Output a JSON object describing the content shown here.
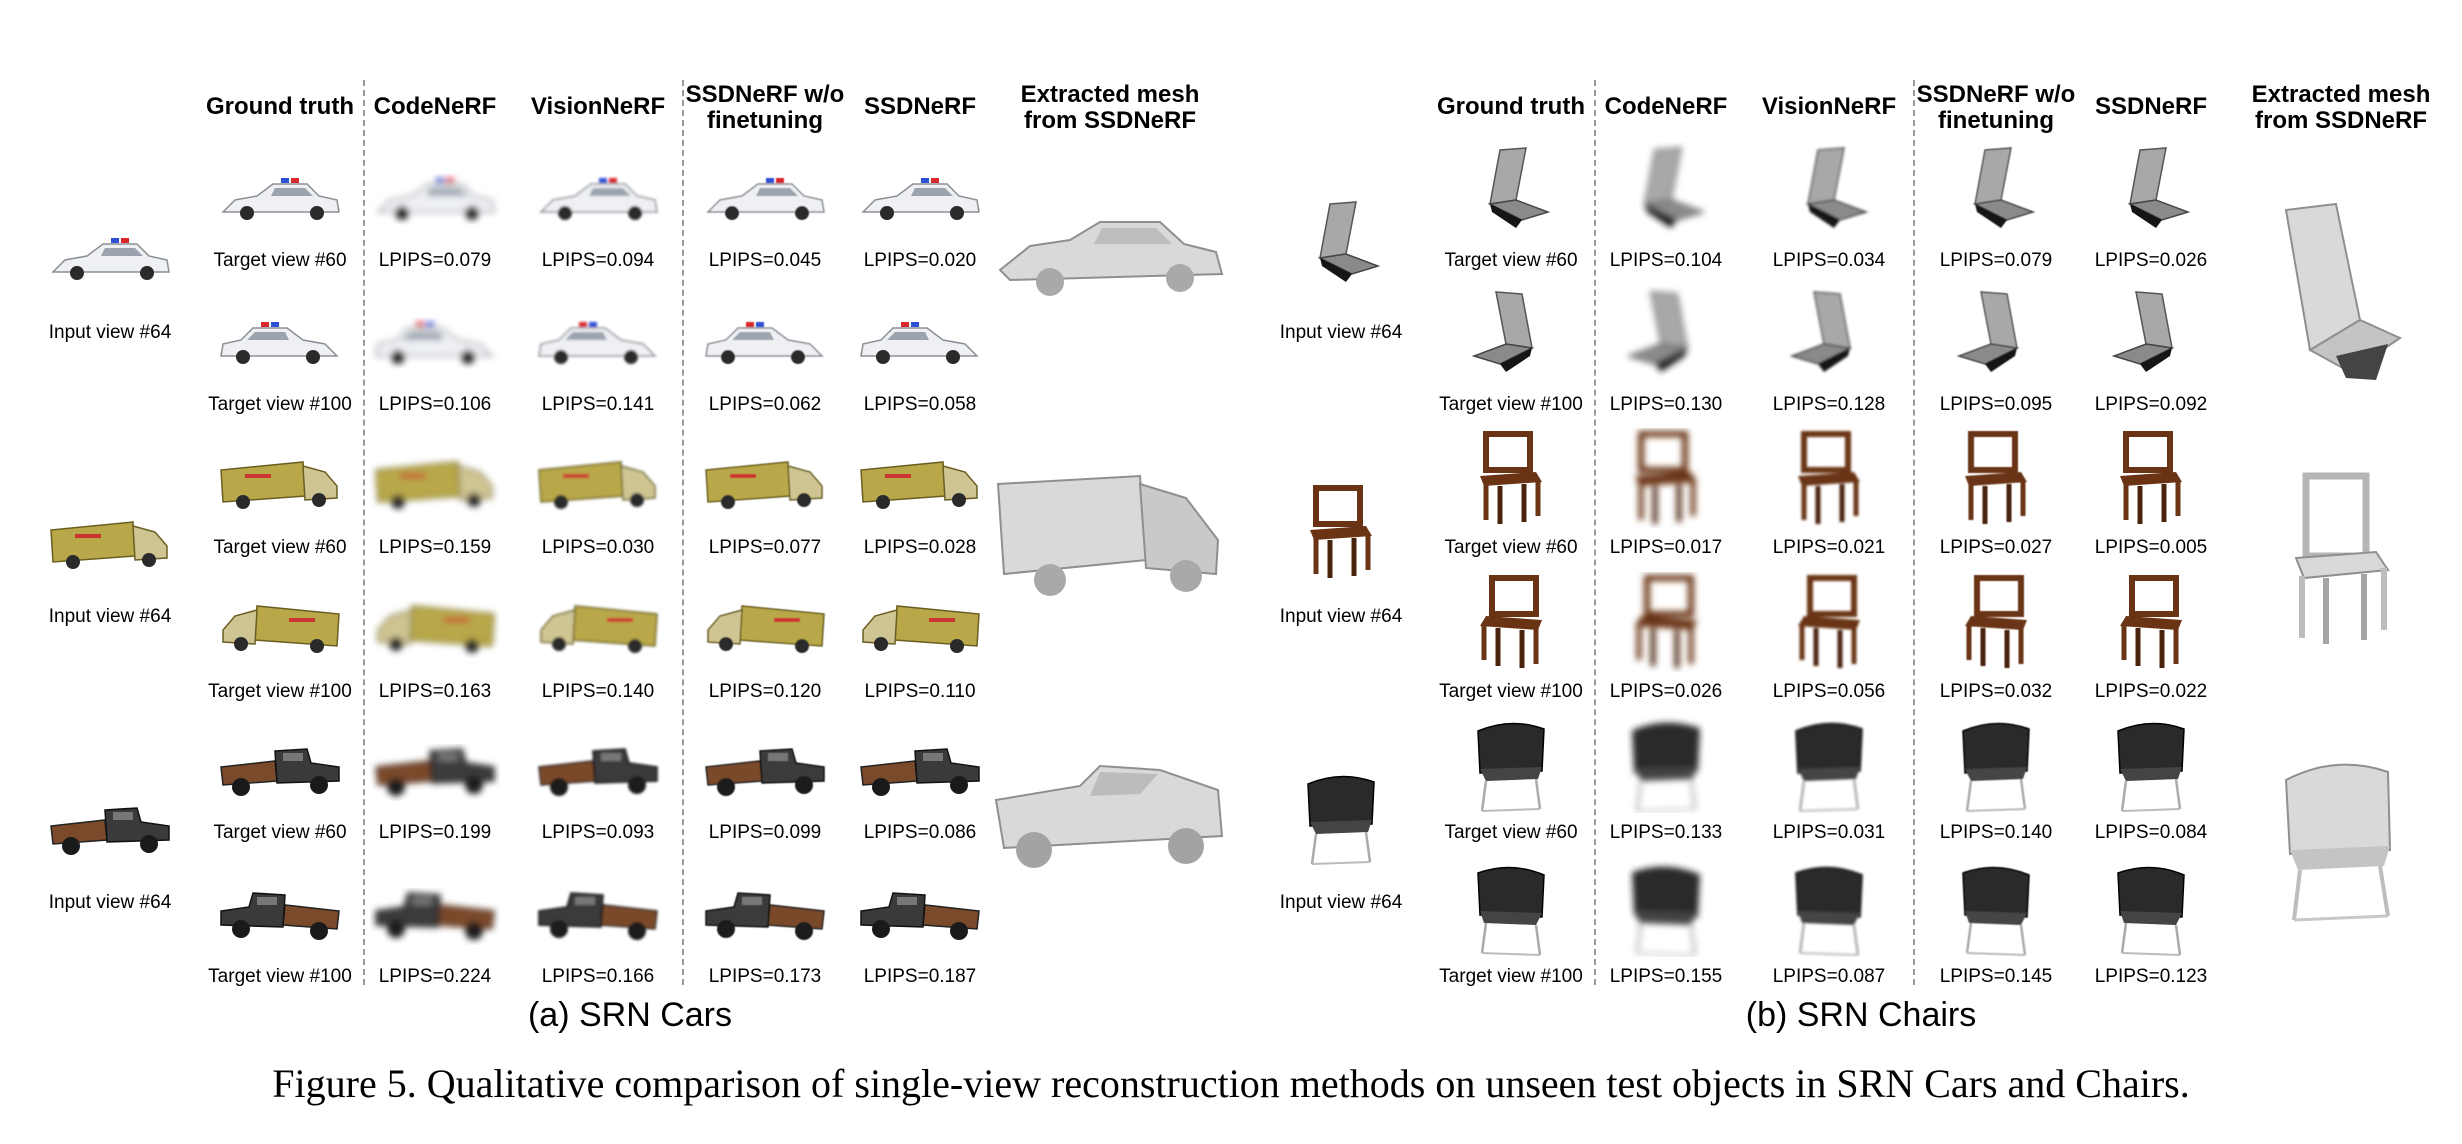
{
  "figure": {
    "caption": "Figure 5. Qualitative comparison of single-view reconstruction methods on unseen test objects in SRN Cars and Chairs."
  },
  "panels": [
    {
      "id": "cars",
      "subcaption": "(a) SRN Cars",
      "kind": "car",
      "columns": [
        "Ground truth",
        "CodeNeRF",
        "VisionNeRF",
        "SSDNeRF w/o\nfinetuning",
        "SSDNeRF",
        "Extracted mesh\nfrom SSDNeRF"
      ],
      "groups": [
        {
          "input_label": "Input view #64",
          "variant": "police",
          "rows": [
            {
              "target": "Target view #60",
              "lpips": [
                "LPIPS=0.079",
                "LPIPS=0.094",
                "LPIPS=0.045",
                "LPIPS=0.020"
              ]
            },
            {
              "target": "Target view #100",
              "lpips": [
                "LPIPS=0.106",
                "LPIPS=0.141",
                "LPIPS=0.062",
                "LPIPS=0.058"
              ]
            }
          ]
        },
        {
          "input_label": "Input view #64",
          "variant": "ambulance",
          "rows": [
            {
              "target": "Target view #60",
              "lpips": [
                "LPIPS=0.159",
                "LPIPS=0.030",
                "LPIPS=0.077",
                "LPIPS=0.028"
              ]
            },
            {
              "target": "Target view #100",
              "lpips": [
                "LPIPS=0.163",
                "LPIPS=0.140",
                "LPIPS=0.120",
                "LPIPS=0.110"
              ]
            }
          ]
        },
        {
          "input_label": "Input view #64",
          "variant": "truck",
          "rows": [
            {
              "target": "Target view #60",
              "lpips": [
                "LPIPS=0.199",
                "LPIPS=0.093",
                "LPIPS=0.099",
                "LPIPS=0.086"
              ]
            },
            {
              "target": "Target view #100",
              "lpips": [
                "LPIPS=0.224",
                "LPIPS=0.166",
                "LPIPS=0.173",
                "LPIPS=0.187"
              ]
            }
          ]
        }
      ]
    },
    {
      "id": "chairs",
      "subcaption": "(b) SRN Chairs",
      "kind": "chair",
      "columns": [
        "Ground truth",
        "CodeNeRF",
        "VisionNeRF",
        "SSDNeRF w/o\nfinetuning",
        "SSDNeRF",
        "Extracted mesh\nfrom SSDNeRF"
      ],
      "groups": [
        {
          "input_label": "Input view #64",
          "variant": "lounge",
          "rows": [
            {
              "target": "Target view #60",
              "lpips": [
                "LPIPS=0.104",
                "LPIPS=0.034",
                "LPIPS=0.079",
                "LPIPS=0.026"
              ]
            },
            {
              "target": "Target view #100",
              "lpips": [
                "LPIPS=0.130",
                "LPIPS=0.128",
                "LPIPS=0.095",
                "LPIPS=0.092"
              ]
            }
          ]
        },
        {
          "input_label": "Input view #64",
          "variant": "wooden",
          "rows": [
            {
              "target": "Target view #60",
              "lpips": [
                "LPIPS=0.017",
                "LPIPS=0.021",
                "LPIPS=0.027",
                "LPIPS=0.005"
              ]
            },
            {
              "target": "Target view #100",
              "lpips": [
                "LPIPS=0.026",
                "LPIPS=0.056",
                "LPIPS=0.032",
                "LPIPS=0.022"
              ]
            }
          ]
        },
        {
          "input_label": "Input view #64",
          "variant": "armchair",
          "rows": [
            {
              "target": "Target view #60",
              "lpips": [
                "LPIPS=0.133",
                "LPIPS=0.031",
                "LPIPS=0.140",
                "LPIPS=0.084"
              ]
            },
            {
              "target": "Target view #100",
              "lpips": [
                "LPIPS=0.155",
                "LPIPS=0.087",
                "LPIPS=0.145",
                "LPIPS=0.123"
              ]
            }
          ]
        }
      ]
    }
  ],
  "colors": {
    "police": "#eef0f3",
    "police_light_blue": "#2f4fd6",
    "police_light_red": "#d8262b",
    "ambulance": "#b8a84a",
    "truck": "#3a3a3a",
    "truck_bed": "#7a4a2a",
    "chair_gray": "#8a8a8a",
    "chair_wood": "#6a3414",
    "chair_black": "#2a2a2a",
    "mesh": "#d9d9d9"
  }
}
